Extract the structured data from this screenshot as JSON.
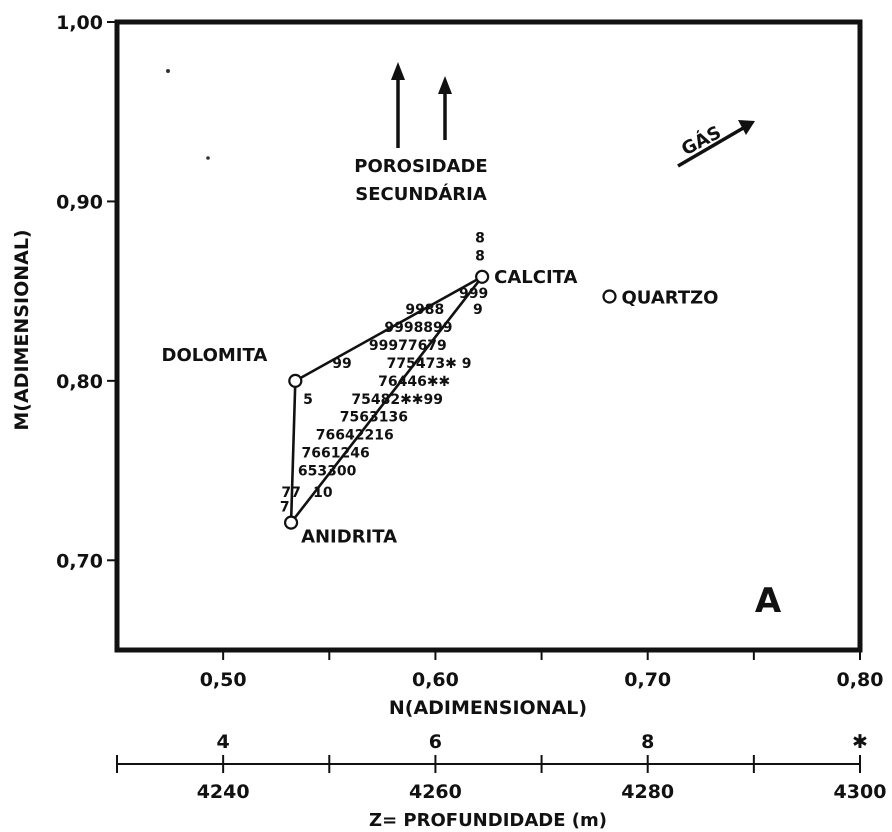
{
  "chart_data": {
    "type": "scatter",
    "panel_letter": "A",
    "xlabel": "N(ADIMENSIONAL)",
    "ylabel": "M(ADIMENSIONAL)",
    "xlim": [
      0.45,
      0.8
    ],
    "ylim": [
      0.65,
      1.0
    ],
    "x_ticks": [
      {
        "v": 0.5,
        "label": "0,50"
      },
      {
        "v": 0.6,
        "label": "0,60"
      },
      {
        "v": 0.7,
        "label": "0,70"
      },
      {
        "v": 0.8,
        "label": "0,80"
      }
    ],
    "y_ticks": [
      {
        "v": 0.7,
        "label": "0,70"
      },
      {
        "v": 0.8,
        "label": "0,80"
      },
      {
        "v": 0.9,
        "label": "0,90"
      },
      {
        "v": 1.0,
        "label": "1,00"
      }
    ],
    "x_minor_ticks": [
      0.55,
      0.65,
      0.75
    ],
    "grid": false,
    "minerals": [
      {
        "name": "CALCITA",
        "x": 0.622,
        "y": 0.858
      },
      {
        "name": "QUARTZO",
        "x": 0.682,
        "y": 0.847
      },
      {
        "name": "DOLOMITA",
        "x": 0.534,
        "y": 0.8
      },
      {
        "name": "ANIDRITA",
        "x": 0.532,
        "y": 0.721
      }
    ],
    "triangle": [
      "CALCITA",
      "DOLOMITA",
      "ANIDRITA"
    ],
    "annotations": {
      "porosity": [
        "POROSIDADE",
        "SECUNDÁRIA"
      ],
      "gas": "GÁS"
    },
    "depth_scale": {
      "label": "Z= PROFUNDIDADE (m)",
      "z_range": [
        4230,
        4300
      ],
      "major_ticks": [
        {
          "z": 4240,
          "label": "4240"
        },
        {
          "z": 4260,
          "label": "4260"
        },
        {
          "z": 4280,
          "label": "4280"
        },
        {
          "z": 4300,
          "label": "4300"
        }
      ],
      "code_ticks": [
        {
          "z": 4240,
          "code": "4"
        },
        {
          "z": 4260,
          "code": "6"
        },
        {
          "z": 4280,
          "code": "8"
        },
        {
          "z": 4300,
          "code": "✱"
        }
      ],
      "minor_ticks": [
        4230,
        4250,
        4270,
        4290
      ]
    },
    "data_point_rows": [
      {
        "x": 0.621,
        "y": 0.88,
        "text": "8"
      },
      {
        "x": 0.621,
        "y": 0.87,
        "text": "8"
      },
      {
        "x": 0.618,
        "y": 0.849,
        "text": "999"
      },
      {
        "x": 0.595,
        "y": 0.84,
        "text": "9988"
      },
      {
        "x": 0.62,
        "y": 0.84,
        "text": "9"
      },
      {
        "x": 0.592,
        "y": 0.83,
        "text": "9998899"
      },
      {
        "x": 0.587,
        "y": 0.82,
        "text": "99977679"
      },
      {
        "x": 0.556,
        "y": 0.81,
        "text": "99"
      },
      {
        "x": 0.597,
        "y": 0.81,
        "text": "775473✱ 9"
      },
      {
        "x": 0.59,
        "y": 0.8,
        "text": "76446✱✱"
      },
      {
        "x": 0.582,
        "y": 0.79,
        "text": "75482✱✱99"
      },
      {
        "x": 0.54,
        "y": 0.79,
        "text": "5"
      },
      {
        "x": 0.571,
        "y": 0.78,
        "text": "7563136"
      },
      {
        "x": 0.562,
        "y": 0.77,
        "text": "76642216"
      },
      {
        "x": 0.553,
        "y": 0.76,
        "text": "7661246"
      },
      {
        "x": 0.549,
        "y": 0.75,
        "text": "653300"
      },
      {
        "x": 0.532,
        "y": 0.738,
        "text": "77"
      },
      {
        "x": 0.547,
        "y": 0.738,
        "text": "10"
      },
      {
        "x": 0.529,
        "y": 0.73,
        "text": "7"
      }
    ]
  }
}
